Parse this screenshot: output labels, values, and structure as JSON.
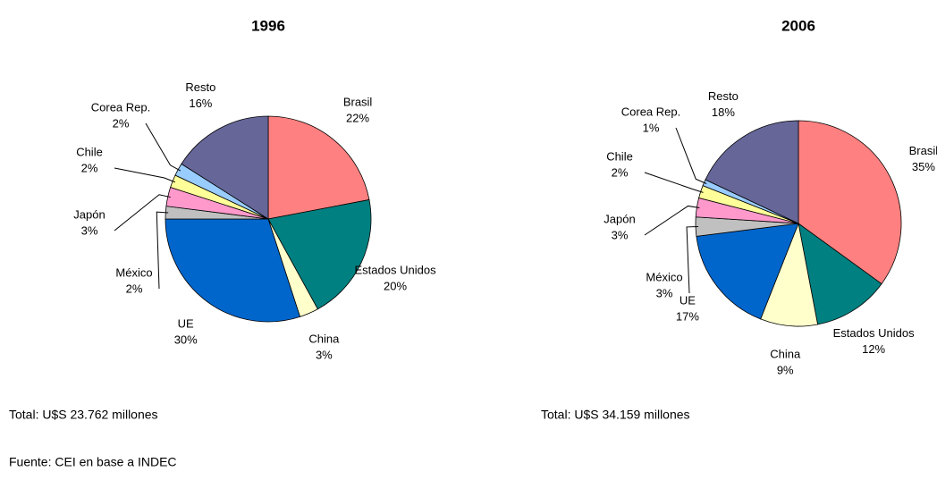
{
  "chart_data": [
    {
      "type": "pie",
      "title": "1996",
      "categories": [
        "Brasil",
        "Estados Unidos",
        "China",
        "UE",
        "México",
        "Japón",
        "Chile",
        "Corea Rep.",
        "Resto"
      ],
      "values": [
        22,
        20,
        3,
        30,
        2,
        3,
        2,
        2,
        16
      ],
      "value_labels": [
        "22%",
        "20%",
        "3%",
        "30%",
        "2%",
        "3%",
        "2%",
        "2%",
        "16%"
      ],
      "colors": [
        "#ff8080",
        "#008080",
        "#ffffcc",
        "#0066cc",
        "#c0c0c0",
        "#ff99cc",
        "#ffff99",
        "#99ccff",
        "#666699"
      ],
      "note": "Total: U$S 23.762 millones"
    },
    {
      "type": "pie",
      "title": "2006",
      "categories": [
        "Brasil",
        "Estados Unidos",
        "China",
        "UE",
        "México",
        "Japón",
        "Chile",
        "Corea Rep.",
        "Resto"
      ],
      "values": [
        35,
        12,
        9,
        17,
        3,
        3,
        2,
        1,
        18
      ],
      "value_labels": [
        "35%",
        "12%",
        "9%",
        "17%",
        "3%",
        "3%",
        "2%",
        "1%",
        "18%"
      ],
      "colors": [
        "#ff8080",
        "#008080",
        "#ffffcc",
        "#0066cc",
        "#c0c0c0",
        "#ff99cc",
        "#ffff99",
        "#99ccff",
        "#666699"
      ],
      "note": "Total: U$S 34.159 millones"
    }
  ],
  "source": "Fuente: CEI en base a INDEC"
}
